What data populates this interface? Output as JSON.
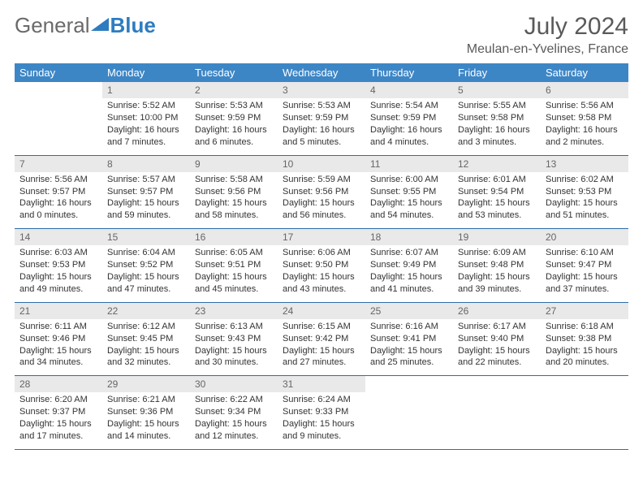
{
  "logo": {
    "text_general": "General",
    "text_blue": "Blue"
  },
  "title": "July 2024",
  "location": "Meulan-en-Yvelines, France",
  "colors": {
    "header_bg": "#3d86c6",
    "header_text": "#ffffff",
    "daynum_bg": "#e9e9e9",
    "daynum_text": "#666666",
    "row_border": "#2e6da8",
    "body_text": "#333333",
    "title_text": "#5a5a5a",
    "logo_general": "#6a6a6a",
    "logo_blue": "#2e7cc0",
    "background": "#ffffff"
  },
  "typography": {
    "title_fontsize": 30,
    "location_fontsize": 16,
    "weekday_fontsize": 13,
    "daynum_fontsize": 12,
    "cell_fontsize": 11,
    "logo_fontsize": 26
  },
  "weekdays": [
    "Sunday",
    "Monday",
    "Tuesday",
    "Wednesday",
    "Thursday",
    "Friday",
    "Saturday"
  ],
  "weeks": [
    [
      {
        "empty": true
      },
      {
        "num": "1",
        "sunrise": "Sunrise: 5:52 AM",
        "sunset": "Sunset: 10:00 PM",
        "dl1": "Daylight: 16 hours",
        "dl2": "and 7 minutes."
      },
      {
        "num": "2",
        "sunrise": "Sunrise: 5:53 AM",
        "sunset": "Sunset: 9:59 PM",
        "dl1": "Daylight: 16 hours",
        "dl2": "and 6 minutes."
      },
      {
        "num": "3",
        "sunrise": "Sunrise: 5:53 AM",
        "sunset": "Sunset: 9:59 PM",
        "dl1": "Daylight: 16 hours",
        "dl2": "and 5 minutes."
      },
      {
        "num": "4",
        "sunrise": "Sunrise: 5:54 AM",
        "sunset": "Sunset: 9:59 PM",
        "dl1": "Daylight: 16 hours",
        "dl2": "and 4 minutes."
      },
      {
        "num": "5",
        "sunrise": "Sunrise: 5:55 AM",
        "sunset": "Sunset: 9:58 PM",
        "dl1": "Daylight: 16 hours",
        "dl2": "and 3 minutes."
      },
      {
        "num": "6",
        "sunrise": "Sunrise: 5:56 AM",
        "sunset": "Sunset: 9:58 PM",
        "dl1": "Daylight: 16 hours",
        "dl2": "and 2 minutes."
      }
    ],
    [
      {
        "num": "7",
        "sunrise": "Sunrise: 5:56 AM",
        "sunset": "Sunset: 9:57 PM",
        "dl1": "Daylight: 16 hours",
        "dl2": "and 0 minutes."
      },
      {
        "num": "8",
        "sunrise": "Sunrise: 5:57 AM",
        "sunset": "Sunset: 9:57 PM",
        "dl1": "Daylight: 15 hours",
        "dl2": "and 59 minutes."
      },
      {
        "num": "9",
        "sunrise": "Sunrise: 5:58 AM",
        "sunset": "Sunset: 9:56 PM",
        "dl1": "Daylight: 15 hours",
        "dl2": "and 58 minutes."
      },
      {
        "num": "10",
        "sunrise": "Sunrise: 5:59 AM",
        "sunset": "Sunset: 9:56 PM",
        "dl1": "Daylight: 15 hours",
        "dl2": "and 56 minutes."
      },
      {
        "num": "11",
        "sunrise": "Sunrise: 6:00 AM",
        "sunset": "Sunset: 9:55 PM",
        "dl1": "Daylight: 15 hours",
        "dl2": "and 54 minutes."
      },
      {
        "num": "12",
        "sunrise": "Sunrise: 6:01 AM",
        "sunset": "Sunset: 9:54 PM",
        "dl1": "Daylight: 15 hours",
        "dl2": "and 53 minutes."
      },
      {
        "num": "13",
        "sunrise": "Sunrise: 6:02 AM",
        "sunset": "Sunset: 9:53 PM",
        "dl1": "Daylight: 15 hours",
        "dl2": "and 51 minutes."
      }
    ],
    [
      {
        "num": "14",
        "sunrise": "Sunrise: 6:03 AM",
        "sunset": "Sunset: 9:53 PM",
        "dl1": "Daylight: 15 hours",
        "dl2": "and 49 minutes."
      },
      {
        "num": "15",
        "sunrise": "Sunrise: 6:04 AM",
        "sunset": "Sunset: 9:52 PM",
        "dl1": "Daylight: 15 hours",
        "dl2": "and 47 minutes."
      },
      {
        "num": "16",
        "sunrise": "Sunrise: 6:05 AM",
        "sunset": "Sunset: 9:51 PM",
        "dl1": "Daylight: 15 hours",
        "dl2": "and 45 minutes."
      },
      {
        "num": "17",
        "sunrise": "Sunrise: 6:06 AM",
        "sunset": "Sunset: 9:50 PM",
        "dl1": "Daylight: 15 hours",
        "dl2": "and 43 minutes."
      },
      {
        "num": "18",
        "sunrise": "Sunrise: 6:07 AM",
        "sunset": "Sunset: 9:49 PM",
        "dl1": "Daylight: 15 hours",
        "dl2": "and 41 minutes."
      },
      {
        "num": "19",
        "sunrise": "Sunrise: 6:09 AM",
        "sunset": "Sunset: 9:48 PM",
        "dl1": "Daylight: 15 hours",
        "dl2": "and 39 minutes."
      },
      {
        "num": "20",
        "sunrise": "Sunrise: 6:10 AM",
        "sunset": "Sunset: 9:47 PM",
        "dl1": "Daylight: 15 hours",
        "dl2": "and 37 minutes."
      }
    ],
    [
      {
        "num": "21",
        "sunrise": "Sunrise: 6:11 AM",
        "sunset": "Sunset: 9:46 PM",
        "dl1": "Daylight: 15 hours",
        "dl2": "and 34 minutes."
      },
      {
        "num": "22",
        "sunrise": "Sunrise: 6:12 AM",
        "sunset": "Sunset: 9:45 PM",
        "dl1": "Daylight: 15 hours",
        "dl2": "and 32 minutes."
      },
      {
        "num": "23",
        "sunrise": "Sunrise: 6:13 AM",
        "sunset": "Sunset: 9:43 PM",
        "dl1": "Daylight: 15 hours",
        "dl2": "and 30 minutes."
      },
      {
        "num": "24",
        "sunrise": "Sunrise: 6:15 AM",
        "sunset": "Sunset: 9:42 PM",
        "dl1": "Daylight: 15 hours",
        "dl2": "and 27 minutes."
      },
      {
        "num": "25",
        "sunrise": "Sunrise: 6:16 AM",
        "sunset": "Sunset: 9:41 PM",
        "dl1": "Daylight: 15 hours",
        "dl2": "and 25 minutes."
      },
      {
        "num": "26",
        "sunrise": "Sunrise: 6:17 AM",
        "sunset": "Sunset: 9:40 PM",
        "dl1": "Daylight: 15 hours",
        "dl2": "and 22 minutes."
      },
      {
        "num": "27",
        "sunrise": "Sunrise: 6:18 AM",
        "sunset": "Sunset: 9:38 PM",
        "dl1": "Daylight: 15 hours",
        "dl2": "and 20 minutes."
      }
    ],
    [
      {
        "num": "28",
        "sunrise": "Sunrise: 6:20 AM",
        "sunset": "Sunset: 9:37 PM",
        "dl1": "Daylight: 15 hours",
        "dl2": "and 17 minutes."
      },
      {
        "num": "29",
        "sunrise": "Sunrise: 6:21 AM",
        "sunset": "Sunset: 9:36 PM",
        "dl1": "Daylight: 15 hours",
        "dl2": "and 14 minutes."
      },
      {
        "num": "30",
        "sunrise": "Sunrise: 6:22 AM",
        "sunset": "Sunset: 9:34 PM",
        "dl1": "Daylight: 15 hours",
        "dl2": "and 12 minutes."
      },
      {
        "num": "31",
        "sunrise": "Sunrise: 6:24 AM",
        "sunset": "Sunset: 9:33 PM",
        "dl1": "Daylight: 15 hours",
        "dl2": "and 9 minutes."
      },
      {
        "empty": true
      },
      {
        "empty": true
      },
      {
        "empty": true
      }
    ]
  ]
}
